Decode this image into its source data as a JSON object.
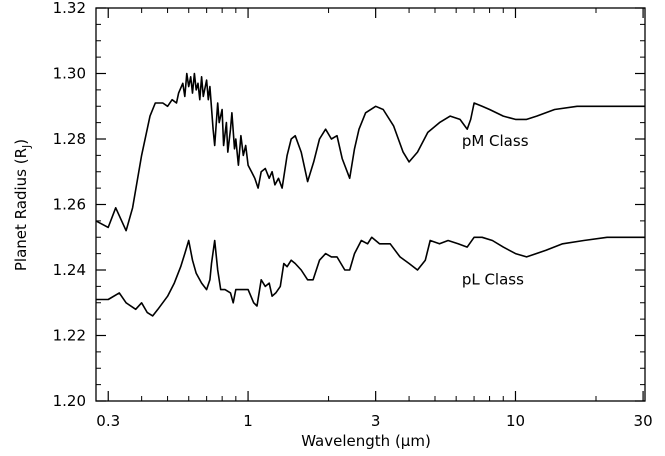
{
  "chart_data": {
    "type": "line",
    "title": "",
    "xlabel": "Wavelength (μm)",
    "ylabel": "Planet Radius (R",
    "ylabel_sub": "J",
    "ylabel_close": ")",
    "xscale": "log",
    "xlim": [
      0.27,
      30.5
    ],
    "ylim": [
      1.2,
      1.32
    ],
    "grid": false,
    "legend": "none",
    "line_color": "#000000",
    "x_ticks": [
      {
        "value": 0.3,
        "label": "0.3"
      },
      {
        "value": 1,
        "label": "1"
      },
      {
        "value": 3,
        "label": "3"
      },
      {
        "value": 10,
        "label": "10"
      },
      {
        "value": 30,
        "label": "30"
      }
    ],
    "x_minor_ticks": [
      0.4,
      0.5,
      0.6,
      0.7,
      0.8,
      0.9,
      2,
      4,
      5,
      6,
      7,
      8,
      9,
      20
    ],
    "y_ticks": [
      {
        "value": 1.2,
        "label": "1.20"
      },
      {
        "value": 1.22,
        "label": "1.22"
      },
      {
        "value": 1.24,
        "label": "1.24"
      },
      {
        "value": 1.26,
        "label": "1.26"
      },
      {
        "value": 1.28,
        "label": "1.28"
      },
      {
        "value": 1.3,
        "label": "1.30"
      },
      {
        "value": 1.32,
        "label": "1.32"
      }
    ],
    "y_minor_step": 0.005,
    "series": [
      {
        "name": "pM Class",
        "label_at": [
          6.3,
          1.2778
        ],
        "points": [
          [
            0.27,
            1.255
          ],
          [
            0.3,
            1.253
          ],
          [
            0.32,
            1.259
          ],
          [
            0.35,
            1.252
          ],
          [
            0.37,
            1.259
          ],
          [
            0.4,
            1.275
          ],
          [
            0.43,
            1.287
          ],
          [
            0.45,
            1.291
          ],
          [
            0.48,
            1.291
          ],
          [
            0.5,
            1.29
          ],
          [
            0.52,
            1.292
          ],
          [
            0.54,
            1.291
          ],
          [
            0.55,
            1.294
          ],
          [
            0.57,
            1.297
          ],
          [
            0.58,
            1.293
          ],
          [
            0.59,
            1.3
          ],
          [
            0.6,
            1.296
          ],
          [
            0.61,
            1.299
          ],
          [
            0.62,
            1.294
          ],
          [
            0.63,
            1.3
          ],
          [
            0.64,
            1.295
          ],
          [
            0.65,
            1.297
          ],
          [
            0.66,
            1.292
          ],
          [
            0.67,
            1.299
          ],
          [
            0.68,
            1.293
          ],
          [
            0.7,
            1.298
          ],
          [
            0.71,
            1.292
          ],
          [
            0.72,
            1.296
          ],
          [
            0.74,
            1.283
          ],
          [
            0.75,
            1.278
          ],
          [
            0.77,
            1.291
          ],
          [
            0.78,
            1.285
          ],
          [
            0.8,
            1.289
          ],
          [
            0.81,
            1.278
          ],
          [
            0.83,
            1.285
          ],
          [
            0.84,
            1.276
          ],
          [
            0.86,
            1.283
          ],
          [
            0.87,
            1.288
          ],
          [
            0.89,
            1.277
          ],
          [
            0.9,
            1.28
          ],
          [
            0.92,
            1.272
          ],
          [
            0.94,
            1.281
          ],
          [
            0.96,
            1.275
          ],
          [
            0.98,
            1.278
          ],
          [
            1.0,
            1.272
          ],
          [
            1.03,
            1.27
          ],
          [
            1.06,
            1.268
          ],
          [
            1.09,
            1.265
          ],
          [
            1.12,
            1.27
          ],
          [
            1.16,
            1.271
          ],
          [
            1.2,
            1.268
          ],
          [
            1.23,
            1.27
          ],
          [
            1.26,
            1.266
          ],
          [
            1.3,
            1.268
          ],
          [
            1.34,
            1.265
          ],
          [
            1.4,
            1.275
          ],
          [
            1.45,
            1.28
          ],
          [
            1.5,
            1.281
          ],
          [
            1.58,
            1.276
          ],
          [
            1.67,
            1.267
          ],
          [
            1.76,
            1.273
          ],
          [
            1.85,
            1.28
          ],
          [
            1.95,
            1.283
          ],
          [
            2.05,
            1.28
          ],
          [
            2.15,
            1.281
          ],
          [
            2.25,
            1.274
          ],
          [
            2.4,
            1.268
          ],
          [
            2.5,
            1.277
          ],
          [
            2.6,
            1.283
          ],
          [
            2.75,
            1.288
          ],
          [
            3.0,
            1.29
          ],
          [
            3.2,
            1.289
          ],
          [
            3.5,
            1.284
          ],
          [
            3.8,
            1.276
          ],
          [
            4.0,
            1.273
          ],
          [
            4.3,
            1.276
          ],
          [
            4.7,
            1.282
          ],
          [
            5.2,
            1.285
          ],
          [
            5.7,
            1.287
          ],
          [
            6.2,
            1.286
          ],
          [
            6.6,
            1.283
          ],
          [
            6.8,
            1.286
          ],
          [
            7.0,
            1.291
          ],
          [
            7.5,
            1.29
          ],
          [
            8.0,
            1.289
          ],
          [
            9.0,
            1.287
          ],
          [
            10.0,
            1.286
          ],
          [
            11.0,
            1.286
          ],
          [
            12.0,
            1.287
          ],
          [
            14.0,
            1.289
          ],
          [
            17.0,
            1.29
          ],
          [
            22.0,
            1.29
          ],
          [
            27.0,
            1.29
          ],
          [
            30.5,
            1.29
          ]
        ]
      },
      {
        "name": "pL Class",
        "label_at": [
          6.3,
          1.2355
        ],
        "points": [
          [
            0.27,
            1.231
          ],
          [
            0.3,
            1.231
          ],
          [
            0.33,
            1.233
          ],
          [
            0.35,
            1.23
          ],
          [
            0.38,
            1.228
          ],
          [
            0.4,
            1.23
          ],
          [
            0.42,
            1.227
          ],
          [
            0.44,
            1.226
          ],
          [
            0.46,
            1.228
          ],
          [
            0.5,
            1.232
          ],
          [
            0.53,
            1.236
          ],
          [
            0.56,
            1.241
          ],
          [
            0.58,
            1.245
          ],
          [
            0.6,
            1.249
          ],
          [
            0.62,
            1.243
          ],
          [
            0.64,
            1.239
          ],
          [
            0.67,
            1.236
          ],
          [
            0.7,
            1.234
          ],
          [
            0.72,
            1.237
          ],
          [
            0.73,
            1.242
          ],
          [
            0.75,
            1.249
          ],
          [
            0.77,
            1.24
          ],
          [
            0.79,
            1.234
          ],
          [
            0.82,
            1.234
          ],
          [
            0.86,
            1.233
          ],
          [
            0.88,
            1.23
          ],
          [
            0.9,
            1.234
          ],
          [
            0.95,
            1.234
          ],
          [
            1.0,
            1.234
          ],
          [
            1.05,
            1.23
          ],
          [
            1.08,
            1.229
          ],
          [
            1.12,
            1.237
          ],
          [
            1.16,
            1.235
          ],
          [
            1.2,
            1.236
          ],
          [
            1.23,
            1.232
          ],
          [
            1.27,
            1.233
          ],
          [
            1.32,
            1.235
          ],
          [
            1.36,
            1.242
          ],
          [
            1.4,
            1.241
          ],
          [
            1.45,
            1.243
          ],
          [
            1.5,
            1.242
          ],
          [
            1.58,
            1.24
          ],
          [
            1.67,
            1.237
          ],
          [
            1.75,
            1.237
          ],
          [
            1.85,
            1.243
          ],
          [
            1.95,
            1.245
          ],
          [
            2.05,
            1.244
          ],
          [
            2.15,
            1.244
          ],
          [
            2.3,
            1.24
          ],
          [
            2.4,
            1.24
          ],
          [
            2.5,
            1.245
          ],
          [
            2.65,
            1.249
          ],
          [
            2.8,
            1.248
          ],
          [
            2.9,
            1.25
          ],
          [
            3.1,
            1.248
          ],
          [
            3.4,
            1.248
          ],
          [
            3.7,
            1.244
          ],
          [
            4.0,
            1.242
          ],
          [
            4.3,
            1.24
          ],
          [
            4.6,
            1.243
          ],
          [
            4.8,
            1.249
          ],
          [
            5.2,
            1.248
          ],
          [
            5.6,
            1.249
          ],
          [
            6.1,
            1.248
          ],
          [
            6.6,
            1.247
          ],
          [
            7.0,
            1.25
          ],
          [
            7.5,
            1.25
          ],
          [
            8.2,
            1.249
          ],
          [
            9.0,
            1.247
          ],
          [
            10.0,
            1.245
          ],
          [
            11.0,
            1.244
          ],
          [
            13.0,
            1.246
          ],
          [
            15.0,
            1.248
          ],
          [
            18.0,
            1.249
          ],
          [
            22.0,
            1.25
          ],
          [
            27.0,
            1.25
          ],
          [
            30.5,
            1.25
          ]
        ]
      }
    ]
  }
}
